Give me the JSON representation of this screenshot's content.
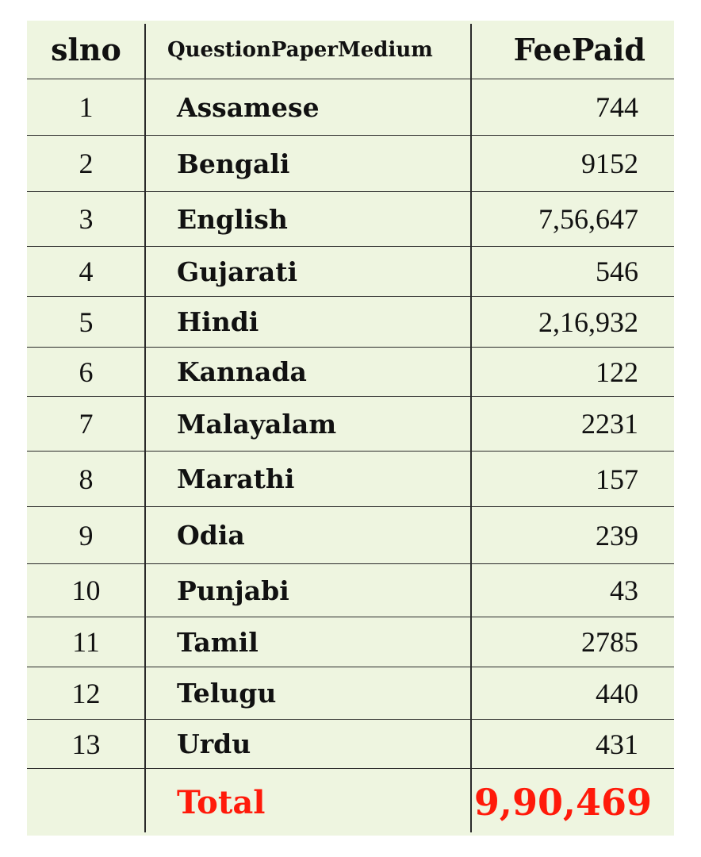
{
  "table": {
    "headers": [
      "slno",
      "QuestionPaperMedium",
      "FeePaid"
    ],
    "rows": [
      [
        "1",
        "Assamese",
        "744"
      ],
      [
        "2",
        "Bengali",
        "9152"
      ],
      [
        "3",
        "English",
        "7,56,647"
      ],
      [
        "4",
        "Gujarati",
        "546"
      ],
      [
        "5",
        "Hindi",
        "2,16,932"
      ],
      [
        "6",
        "Kannada",
        "122"
      ],
      [
        "7",
        "Malayalam",
        "2231"
      ],
      [
        "8",
        "Marathi",
        "157"
      ],
      [
        "9",
        "Odia",
        "239"
      ],
      [
        "10",
        "Punjabi",
        "43"
      ],
      [
        "11",
        "Tamil",
        "2785"
      ],
      [
        "12",
        "Telugu",
        "440"
      ],
      [
        "13",
        "Urdu",
        "431"
      ]
    ],
    "total": {
      "label": "Total",
      "value": "9,90,469"
    },
    "colors": {
      "background": "#eef5e0",
      "total_text": "#ff1a0a",
      "border": "#2a2a2a"
    }
  }
}
